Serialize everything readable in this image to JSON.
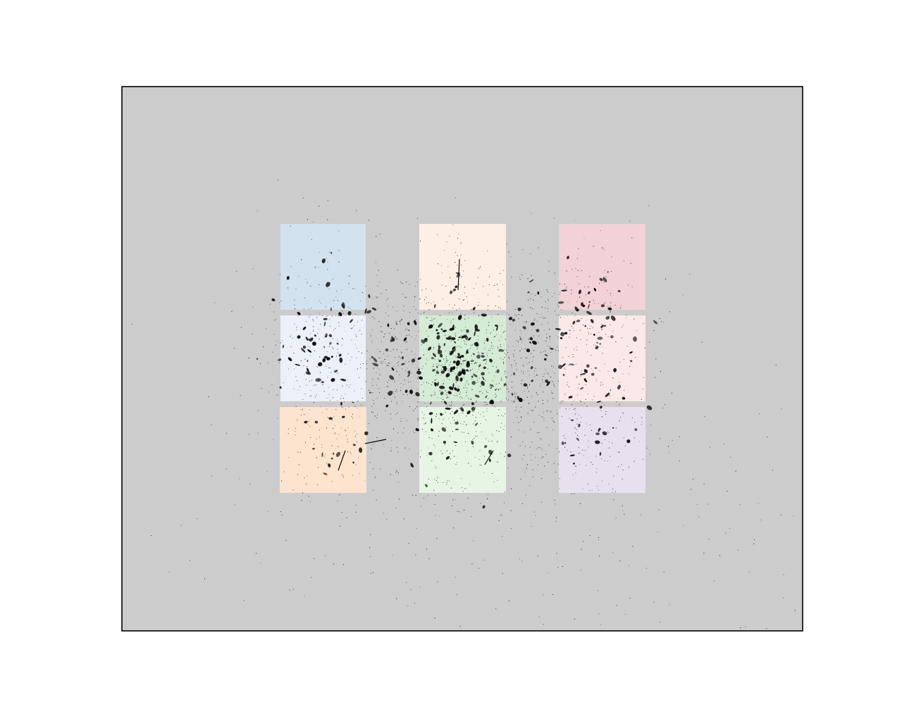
{
  "figure": {
    "background": "#ffffff",
    "panel_background": "#cccccc",
    "frame_color": "#000000",
    "ink_color": "#0a0a0a"
  },
  "grid": {
    "rows": 3,
    "columns": 3,
    "tiles": [
      {
        "name": "blue",
        "color": "#d2e3ef"
      },
      {
        "name": "peach",
        "color": "#fdefe3"
      },
      {
        "name": "rose",
        "color": "#f3d2d7"
      },
      {
        "name": "light-blue",
        "color": "#ecf1f9"
      },
      {
        "name": "green",
        "color": "#d4ebd5"
      },
      {
        "name": "light-pink",
        "color": "#fbe9e9"
      },
      {
        "name": "orange",
        "color": "#fde4cf"
      },
      {
        "name": "light-green",
        "color": "#e7f6e4"
      },
      {
        "name": "lavender",
        "color": "#e6e0ef"
      }
    ]
  }
}
